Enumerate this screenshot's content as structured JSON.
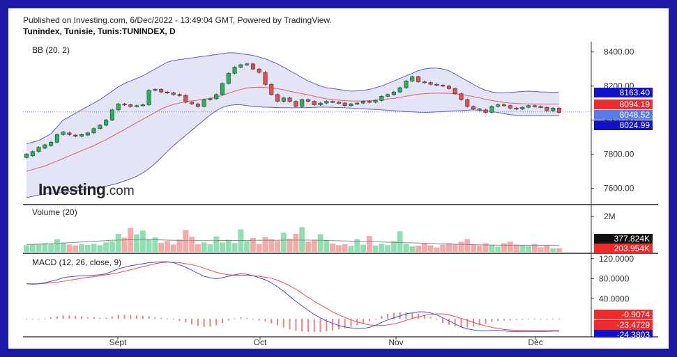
{
  "header": {
    "published": "Published on Investing.com, 6/Dec/2022 - 13:49:04 GMT, Powered by TradingView.",
    "symbol": "Tunindex, Tunisie, Tunis:TUNINDEX, D"
  },
  "logo": {
    "brand": "Investing",
    "suffix": ".com"
  },
  "colors": {
    "frame": "#1a1aa6",
    "up": "#1db954",
    "down": "#ef4a4a",
    "band": "#5b5bd6",
    "band_fill": "#e4e4f7",
    "basis": "#e35d5d",
    "volume_ma": "#888888",
    "macd_line": "#4a4ad6",
    "signal_line": "#ef4a4a"
  },
  "chart_data": [
    {
      "type": "candlestick",
      "title": "BB (20, 2)",
      "ylim": [
        7520,
        8460
      ],
      "yticks": [
        "8400.00",
        "8200.00",
        "8000.00",
        "7800.00",
        "7600.00"
      ],
      "xticks": [
        "Sept",
        "Oct",
        "Nov",
        "Déc"
      ],
      "last_labels": [
        {
          "text": "8163.40",
          "value": 8163.4,
          "color": "#1212c8"
        },
        {
          "text": "8094.19",
          "value": 8094.19,
          "color": "#ef2b2b"
        },
        {
          "text": "8048.52",
          "value": 8048.52,
          "color": "#5b7be8"
        },
        {
          "text": "8024.99",
          "value": 8024.99,
          "color": "#1212c8"
        }
      ],
      "candles": [
        [
          7780,
          7800
        ],
        [
          7790,
          7815
        ],
        [
          7815,
          7840
        ],
        [
          7835,
          7855
        ],
        [
          7850,
          7870
        ],
        [
          7870,
          7915
        ],
        [
          7915,
          7930
        ],
        [
          7925,
          7915
        ],
        [
          7912,
          7905
        ],
        [
          7905,
          7915
        ],
        [
          7912,
          7925
        ],
        [
          7925,
          7950
        ],
        [
          7950,
          7970
        ],
        [
          7970,
          8000
        ],
        [
          8000,
          8060
        ],
        [
          8060,
          8095
        ],
        [
          8095,
          8090
        ],
        [
          8090,
          8080
        ],
        [
          8080,
          8085
        ],
        [
          8085,
          8090
        ],
        [
          8090,
          8175
        ],
        [
          8175,
          8180
        ],
        [
          8180,
          8165
        ],
        [
          8165,
          8160
        ],
        [
          8160,
          8150
        ],
        [
          8150,
          8145
        ],
        [
          8145,
          8105
        ],
        [
          8105,
          8095
        ],
        [
          8095,
          8080
        ],
        [
          8080,
          8120
        ],
        [
          8120,
          8125
        ],
        [
          8125,
          8150
        ],
        [
          8150,
          8215
        ],
        [
          8215,
          8275
        ],
        [
          8275,
          8310
        ],
        [
          8310,
          8325
        ],
        [
          8325,
          8330
        ],
        [
          8330,
          8300
        ],
        [
          8300,
          8280
        ],
        [
          8280,
          8210
        ],
        [
          8210,
          8150
        ],
        [
          8150,
          8110
        ],
        [
          8110,
          8130
        ],
        [
          8130,
          8110
        ],
        [
          8110,
          8080
        ],
        [
          8080,
          8120
        ],
        [
          8120,
          8110
        ],
        [
          8110,
          8090
        ],
        [
          8090,
          8100
        ],
        [
          8100,
          8110
        ],
        [
          8110,
          8105
        ],
        [
          8105,
          8100
        ],
        [
          8100,
          8085
        ],
        [
          8085,
          8095
        ],
        [
          8095,
          8100
        ],
        [
          8100,
          8110
        ],
        [
          8110,
          8105
        ],
        [
          8105,
          8115
        ],
        [
          8115,
          8140
        ],
        [
          8140,
          8150
        ],
        [
          8150,
          8165
        ],
        [
          8165,
          8190
        ],
        [
          8190,
          8230
        ],
        [
          8230,
          8255
        ],
        [
          8255,
          8225
        ],
        [
          8225,
          8220
        ],
        [
          8220,
          8210
        ],
        [
          8210,
          8205
        ],
        [
          8205,
          8200
        ],
        [
          8200,
          8185
        ],
        [
          8185,
          8155
        ],
        [
          8155,
          8120
        ],
        [
          8120,
          8080
        ],
        [
          8080,
          8065
        ],
        [
          8065,
          8060
        ],
        [
          8060,
          8045
        ],
        [
          8045,
          8080
        ],
        [
          8080,
          8090
        ],
        [
          8090,
          8085
        ],
        [
          8085,
          8070
        ],
        [
          8070,
          8065
        ],
        [
          8065,
          8075
        ],
        [
          8075,
          8085
        ],
        [
          8085,
          8080
        ],
        [
          8080,
          8075
        ],
        [
          8075,
          8055
        ],
        [
          8055,
          8070
        ],
        [
          8070,
          8045
        ]
      ],
      "upper_band": [
        7860,
        7870,
        7880,
        7900,
        7920,
        7960,
        8000,
        8020,
        8040,
        8060,
        8080,
        8100,
        8120,
        8145,
        8170,
        8195,
        8215,
        8230,
        8245,
        8260,
        8280,
        8300,
        8320,
        8340,
        8350,
        8355,
        8360,
        8365,
        8370,
        8375,
        8380,
        8385,
        8390,
        8395,
        8395,
        8390,
        8385,
        8380,
        8370,
        8360,
        8345,
        8330,
        8310,
        8290,
        8270,
        8250,
        8230,
        8215,
        8200,
        8190,
        8185,
        8180,
        8175,
        8170,
        8172,
        8175,
        8180,
        8190,
        8200,
        8215,
        8230,
        8245,
        8260,
        8275,
        8290,
        8300,
        8305,
        8305,
        8300,
        8290,
        8270,
        8250,
        8230,
        8210,
        8190,
        8175,
        8165,
        8160,
        8160,
        8162,
        8165,
        8168,
        8170,
        8168,
        8165,
        8164,
        8163,
        8163.4
      ],
      "basis": [
        7700,
        7710,
        7720,
        7730,
        7745,
        7760,
        7775,
        7790,
        7805,
        7820,
        7835,
        7850,
        7868,
        7885,
        7905,
        7925,
        7945,
        7965,
        7985,
        8005,
        8025,
        8045,
        8065,
        8080,
        8092,
        8100,
        8108,
        8113,
        8117,
        8122,
        8128,
        8135,
        8145,
        8158,
        8170,
        8180,
        8188,
        8192,
        8193,
        8191,
        8188,
        8184,
        8178,
        8170,
        8162,
        8155,
        8148,
        8140,
        8132,
        8125,
        8120,
        8117,
        8114,
        8112,
        8112,
        8112,
        8114,
        8117,
        8120,
        8124,
        8128,
        8133,
        8140,
        8147,
        8152,
        8155,
        8157,
        8158,
        8158,
        8157,
        8154,
        8150,
        8144,
        8138,
        8130,
        8122,
        8115,
        8109,
        8104,
        8100,
        8098,
        8096,
        8095,
        8094,
        8094,
        8094,
        8094,
        8094.19
      ],
      "lower_band": [
        7545,
        7552,
        7560,
        7565,
        7570,
        7572,
        7575,
        7580,
        7585,
        7590,
        7595,
        7600,
        7605,
        7612,
        7620,
        7630,
        7642,
        7655,
        7670,
        7690,
        7715,
        7745,
        7780,
        7815,
        7850,
        7880,
        7910,
        7940,
        7970,
        8000,
        8030,
        8055,
        8075,
        8085,
        8090,
        8090,
        8085,
        8080,
        8078,
        8076,
        8075,
        8074,
        8073,
        8072,
        8072,
        8073,
        8074,
        8075,
        8076,
        8076,
        8075,
        8074,
        8072,
        8070,
        8068,
        8066,
        8064,
        8062,
        8060,
        8058,
        8055,
        8052,
        8050,
        8048,
        8046,
        8045,
        8046,
        8048,
        8050,
        8052,
        8054,
        8056,
        8058,
        8060,
        8058,
        8055,
        8050,
        8044,
        8038,
        8032,
        8028,
        8026,
        8025,
        8025,
        8025,
        8025,
        8024.99,
        8024.99
      ]
    },
    {
      "type": "bar",
      "title": "Volume (20)",
      "ylim": [
        0,
        2600000
      ],
      "yticks": [
        "2M"
      ],
      "last_labels": [
        {
          "text": "377.824K",
          "value": 377824,
          "color": "#111111"
        },
        {
          "text": "203.954K",
          "value": 203954,
          "color": "#ef2b2b"
        }
      ],
      "values": [
        380000,
        450000,
        420000,
        500000,
        460000,
        720000,
        530000,
        420000,
        360000,
        440000,
        390000,
        460000,
        380000,
        540000,
        600000,
        1030000,
        810000,
        1360000,
        990000,
        1210000,
        690000,
        820000,
        510000,
        620000,
        420000,
        700000,
        1240000,
        850000,
        430000,
        530000,
        430000,
        880000,
        530000,
        690000,
        500000,
        1280000,
        610000,
        790000,
        450000,
        830000,
        720000,
        620000,
        1090000,
        740000,
        1030000,
        1400000,
        570000,
        690000,
        1000000,
        690000,
        470000,
        380000,
        440000,
        340000,
        720000,
        410000,
        900000,
        360000,
        460000,
        380000,
        610000,
        1170000,
        450000,
        320000,
        350000,
        480000,
        370000,
        250000,
        420000,
        490000,
        430000,
        570000,
        730000,
        430000,
        350000,
        490000,
        410000,
        300000,
        490000,
        580000,
        420000,
        380000,
        330000,
        450000,
        260000,
        400000,
        210000,
        203954
      ],
      "ma": [
        420000,
        430000,
        440000,
        450000,
        460000,
        480000,
        500000,
        520000,
        540000,
        560000,
        580000,
        600000,
        620000,
        640000,
        660000,
        670000,
        680000,
        690000,
        700000,
        710000,
        700000,
        690000,
        680000,
        670000,
        660000,
        650000,
        640000,
        640000,
        640000,
        640000,
        640000,
        640000,
        650000,
        650000,
        650000,
        650000,
        650000,
        660000,
        660000,
        660000,
        660000,
        660000,
        670000,
        670000,
        670000,
        670000,
        670000,
        670000,
        660000,
        650000,
        640000,
        630000,
        620000,
        610000,
        600000,
        590000,
        580000,
        570000,
        560000,
        550000,
        540000,
        530000,
        520000,
        510000,
        500000,
        490000,
        480000,
        470000,
        460000,
        450000,
        440000,
        430000,
        420000,
        410000,
        400000,
        395000,
        390000,
        385000,
        380000,
        378000,
        378000,
        378000,
        378000,
        378000,
        378000,
        378000,
        377900,
        377824
      ]
    },
    {
      "type": "line",
      "title": "MACD (12, 26, close, 9)",
      "ylim": [
        -33,
        128
      ],
      "yticks": [
        "120.0000",
        "80.0000",
        "40.0000"
      ],
      "last_labels": [
        {
          "text": "-0.9074",
          "value": -0.9074,
          "color": "#ef2b2b"
        },
        {
          "text": "-23.4729",
          "value": -23.4729,
          "color": "#ef2b2b"
        },
        {
          "text": "-24.3803",
          "value": -24.3803,
          "color": "#1212c8"
        }
      ],
      "macd": [
        70,
        69,
        70,
        72,
        75,
        78,
        82,
        84,
        85,
        86,
        86,
        87,
        88,
        90,
        95,
        100,
        103,
        106,
        108,
        110,
        112,
        113,
        114,
        114,
        112,
        108,
        103,
        97,
        91,
        85,
        82,
        80,
        82,
        85,
        88,
        90,
        89,
        86,
        82,
        78,
        72,
        64,
        55,
        45,
        35,
        26,
        17,
        9,
        2,
        -4,
        -9,
        -13,
        -16,
        -18,
        -19,
        -19,
        -17,
        -13,
        -7,
        -2,
        2,
        6,
        10,
        12,
        14,
        14,
        12,
        8,
        2,
        -4,
        -10,
        -16,
        -20,
        -22,
        -24,
        -24,
        -23,
        -23,
        -24,
        -25,
        -25,
        -25,
        -25,
        -25,
        -25,
        -25,
        -24.5,
        -24.3803
      ],
      "signal": [
        70,
        70,
        70,
        71,
        72,
        73,
        75,
        77,
        79,
        81,
        83,
        84,
        86,
        88,
        90,
        92,
        95,
        98,
        101,
        104,
        107,
        110,
        112,
        113,
        113,
        112,
        110,
        108,
        105,
        101,
        97,
        93,
        90,
        88,
        87,
        87,
        87,
        86,
        85,
        83,
        81,
        77,
        72,
        66,
        59,
        51,
        43,
        35,
        28,
        21,
        14,
        8,
        3,
        -2,
        -6,
        -9,
        -12,
        -13,
        -13,
        -12,
        -10,
        -7,
        -3,
        1,
        4,
        7,
        9,
        10,
        10,
        8,
        5,
        1,
        -3,
        -7,
        -11,
        -14,
        -17,
        -19,
        -21,
        -22,
        -23,
        -23,
        -23.5,
        -23.5,
        -23.5,
        -23.5,
        -23.5,
        -23.4729
      ],
      "histogram": [
        0,
        -1,
        0,
        1,
        3,
        5,
        7,
        7,
        6,
        5,
        3,
        3,
        2,
        2,
        5,
        8,
        8,
        8,
        7,
        6,
        5,
        3,
        2,
        1,
        -1,
        -4,
        -7,
        -11,
        -14,
        -16,
        -15,
        -13,
        -8,
        -3,
        1,
        3,
        2,
        0,
        -3,
        -5,
        -9,
        -13,
        -17,
        -21,
        -24,
        -25,
        -26,
        -26,
        -26,
        -25,
        -23,
        -21,
        -19,
        -16,
        -13,
        -10,
        -5,
        0,
        6,
        10,
        12,
        13,
        13,
        11,
        10,
        7,
        3,
        -2,
        -8,
        -12,
        -15,
        -17,
        -17,
        -15,
        -13,
        -10,
        -6,
        -4,
        -3,
        -3,
        -2,
        -2,
        -1.5,
        -1.5,
        -1.5,
        -1.5,
        -1,
        -0.9074
      ]
    }
  ]
}
